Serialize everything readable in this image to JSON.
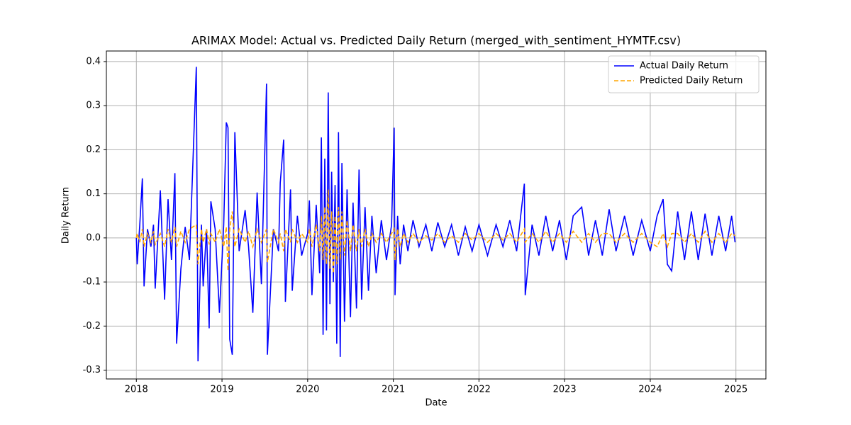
{
  "chart_data": {
    "type": "line",
    "title": "ARIMAX Model: Actual vs. Predicted Daily Return (merged_with_sentiment_HYMTF.csv)",
    "xlabel": "Date",
    "ylabel": "Daily Return",
    "x": [
      2018.0,
      2018.01,
      2018.04,
      2018.07,
      2018.09,
      2018.13,
      2018.17,
      2018.2,
      2018.22,
      2018.28,
      2018.33,
      2018.37,
      2018.41,
      2018.45,
      2018.47,
      2018.52,
      2018.57,
      2018.62,
      2018.7,
      2018.72,
      2018.76,
      2018.78,
      2018.82,
      2018.85,
      2018.87,
      2018.92,
      2018.97,
      2019.02,
      2019.05,
      2019.07,
      2019.09,
      2019.12,
      2019.15,
      2019.2,
      2019.27,
      2019.31,
      2019.36,
      2019.41,
      2019.46,
      2019.52,
      2019.53,
      2019.6,
      2019.66,
      2019.68,
      2019.72,
      2019.74,
      2019.8,
      2019.82,
      2019.88,
      2019.93,
      2020.0,
      2020.02,
      2020.05,
      2020.1,
      2020.14,
      2020.16,
      2020.18,
      2020.2,
      2020.22,
      2020.24,
      2020.26,
      2020.28,
      2020.3,
      2020.32,
      2020.34,
      2020.36,
      2020.38,
      2020.4,
      2020.43,
      2020.46,
      2020.5,
      2020.53,
      2020.57,
      2020.6,
      2020.63,
      2020.67,
      2020.71,
      2020.75,
      2020.8,
      2020.86,
      2020.92,
      2020.98,
      2021.01,
      2021.02,
      2021.05,
      2021.08,
      2021.12,
      2021.17,
      2021.23,
      2021.3,
      2021.38,
      2021.45,
      2021.52,
      2021.6,
      2021.68,
      2021.76,
      2021.84,
      2021.92,
      2022.0,
      2022.1,
      2022.2,
      2022.28,
      2022.36,
      2022.44,
      2022.53,
      2022.54,
      2022.62,
      2022.7,
      2022.78,
      2022.86,
      2022.94,
      2023.02,
      2023.1,
      2023.2,
      2023.28,
      2023.36,
      2023.44,
      2023.52,
      2023.6,
      2023.7,
      2023.8,
      2023.9,
      2024.0,
      2024.08,
      2024.15,
      2024.2,
      2024.25,
      2024.32,
      2024.4,
      2024.48,
      2024.56,
      2024.64,
      2024.72,
      2024.8,
      2024.88,
      2024.95,
      2024.99
    ],
    "series": [
      {
        "name": "Actual Daily Return",
        "color": "#0000ff",
        "dash": false,
        "values": [
          0.0,
          -0.06,
          0.03,
          0.135,
          -0.11,
          0.02,
          -0.02,
          0.03,
          -0.115,
          0.108,
          -0.14,
          0.088,
          -0.05,
          0.147,
          -0.24,
          -0.07,
          0.025,
          -0.05,
          0.388,
          -0.28,
          0.03,
          -0.11,
          0.02,
          -0.205,
          0.083,
          0.02,
          -0.17,
          0.03,
          0.262,
          0.25,
          -0.23,
          -0.265,
          0.24,
          -0.03,
          0.063,
          -0.02,
          -0.17,
          0.103,
          -0.105,
          0.35,
          -0.265,
          0.02,
          -0.03,
          0.125,
          0.223,
          -0.145,
          0.11,
          -0.12,
          0.05,
          -0.04,
          0.01,
          0.085,
          -0.13,
          0.075,
          -0.08,
          0.228,
          -0.22,
          0.18,
          -0.21,
          0.33,
          -0.15,
          0.15,
          -0.1,
          0.12,
          -0.24,
          0.24,
          -0.27,
          0.17,
          -0.19,
          0.11,
          -0.18,
          0.08,
          -0.16,
          0.155,
          -0.14,
          0.07,
          -0.12,
          0.05,
          -0.08,
          0.04,
          -0.05,
          0.03,
          0.25,
          -0.13,
          0.05,
          -0.06,
          0.03,
          -0.03,
          0.04,
          -0.02,
          0.03,
          -0.03,
          0.035,
          -0.02,
          0.03,
          -0.04,
          0.025,
          -0.03,
          0.03,
          -0.04,
          0.03,
          -0.02,
          0.04,
          -0.03,
          0.123,
          -0.13,
          0.03,
          -0.04,
          0.05,
          -0.03,
          0.04,
          -0.05,
          0.05,
          0.07,
          -0.04,
          0.04,
          -0.04,
          0.065,
          -0.03,
          0.05,
          -0.04,
          0.04,
          -0.03,
          0.05,
          0.088,
          -0.06,
          -0.075,
          0.06,
          -0.05,
          0.06,
          -0.05,
          0.055,
          -0.04,
          0.05,
          -0.03,
          0.05,
          -0.01
        ]
      },
      {
        "name": "Predicted Daily Return",
        "color": "#ffa500",
        "dash": true,
        "values": [
          0.0,
          0.01,
          -0.01,
          0.02,
          -0.02,
          0.01,
          -0.01,
          0.015,
          -0.015,
          0.01,
          -0.02,
          0.02,
          -0.01,
          0.025,
          -0.02,
          0.015,
          -0.01,
          0.02,
          0.03,
          -0.06,
          0.02,
          -0.01,
          0.02,
          -0.015,
          0.01,
          -0.01,
          0.02,
          -0.02,
          0.025,
          -0.075,
          0.02,
          0.06,
          -0.02,
          0.02,
          -0.01,
          0.015,
          -0.02,
          0.02,
          -0.01,
          0.02,
          -0.055,
          0.02,
          -0.01,
          0.01,
          -0.03,
          0.02,
          -0.01,
          0.02,
          -0.01,
          0.01,
          -0.01,
          0.02,
          -0.02,
          0.03,
          -0.03,
          0.05,
          -0.05,
          0.07,
          -0.06,
          0.11,
          -0.07,
          0.06,
          -0.08,
          0.05,
          -0.06,
          0.07,
          -0.05,
          0.06,
          -0.04,
          0.04,
          -0.03,
          0.03,
          -0.03,
          0.02,
          -0.02,
          0.02,
          -0.02,
          0.01,
          -0.01,
          0.01,
          -0.01,
          0.01,
          0.02,
          -0.05,
          0.02,
          -0.02,
          0.01,
          -0.01,
          0.01,
          -0.01,
          0.005,
          -0.005,
          0.01,
          -0.01,
          0.005,
          -0.01,
          0.01,
          -0.005,
          0.01,
          -0.01,
          0.01,
          -0.005,
          0.01,
          -0.01,
          0.02,
          -0.01,
          0.01,
          -0.01,
          0.015,
          -0.01,
          0.01,
          -0.01,
          0.015,
          -0.01,
          0.01,
          -0.01,
          0.01,
          0.01,
          -0.01,
          0.01,
          -0.01,
          0.01,
          -0.01,
          -0.02,
          0.01,
          -0.02,
          0.01,
          0.01,
          -0.01,
          0.01,
          -0.01,
          0.015,
          -0.01,
          0.01,
          -0.01,
          0.01,
          0.005
        ]
      }
    ],
    "xlim": [
      2017.65,
      2025.35
    ],
    "xticks": [
      2018,
      2019,
      2020,
      2021,
      2022,
      2023,
      2024,
      2025
    ],
    "ylim": [
      -0.32,
      0.424
    ],
    "yticks": [
      -0.3,
      -0.2,
      -0.1,
      0.0,
      0.1,
      0.2,
      0.3,
      0.4
    ],
    "grid": true,
    "legend": "upper right"
  }
}
